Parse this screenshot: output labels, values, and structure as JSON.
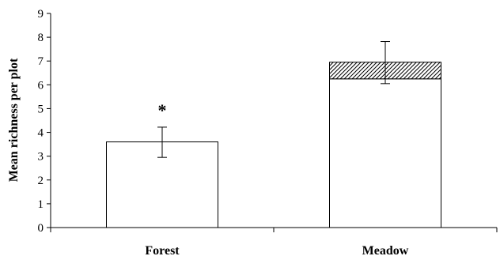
{
  "chart_data": {
    "type": "bar",
    "categories": [
      "Forest",
      "Meadow"
    ],
    "series": [
      {
        "values": [
          3.6,
          6.25
        ],
        "error_high": [
          4.22,
          7.82
        ],
        "error_low": [
          2.95,
          6.05
        ],
        "fill": "#ffffff",
        "pattern": "none"
      },
      {
        "values": [
          0,
          0.7
        ],
        "fill": "#ffffff",
        "pattern": "diagonal-hatch"
      }
    ],
    "stacked": true,
    "ylabel": "Mean richness per plot",
    "xlabel": "",
    "ylim": [
      0,
      9
    ],
    "yticks": [
      0,
      1,
      2,
      3,
      4,
      5,
      6,
      7,
      8,
      9
    ],
    "grid": false,
    "annotations": [
      {
        "category": "Forest",
        "text": "*"
      }
    ],
    "colors": {
      "axis": "#000000",
      "bar_edge": "#000000",
      "bar_fill": "#ffffff",
      "hatch": "#000000"
    }
  }
}
